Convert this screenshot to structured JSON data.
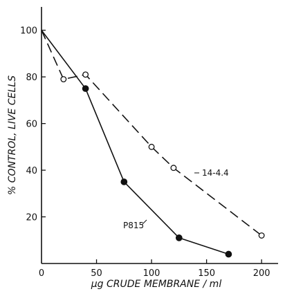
{
  "chart_data": {
    "type": "line",
    "title": "",
    "xlabel": "μg CRUDE MEMBRANE / ml",
    "ylabel": "% CONTROL, LIVE CELLS",
    "xlim": [
      0,
      215
    ],
    "ylim": [
      0,
      110
    ],
    "x_ticks": [
      0,
      50,
      100,
      150,
      200
    ],
    "x_tick_labels": [
      "0",
      "50",
      "100",
      "150",
      "200"
    ],
    "y_ticks": [
      20,
      40,
      60,
      80,
      100
    ],
    "y_tick_labels": [
      "20",
      "40",
      "60",
      "80",
      "100"
    ],
    "grid": false,
    "series": [
      {
        "name": "P815",
        "marker": "filled-circle",
        "line_style": "solid",
        "color": "#111111",
        "x": [
          0,
          40,
          75,
          125,
          170
        ],
        "y": [
          100,
          75,
          35,
          11,
          4
        ]
      },
      {
        "name": "14-4.4",
        "marker": "open-circle",
        "line_style": "dashed",
        "color": "#111111",
        "x": [
          0,
          20,
          40,
          100,
          120,
          200
        ],
        "y": [
          100,
          79,
          81,
          50,
          41,
          12
        ]
      }
    ]
  }
}
